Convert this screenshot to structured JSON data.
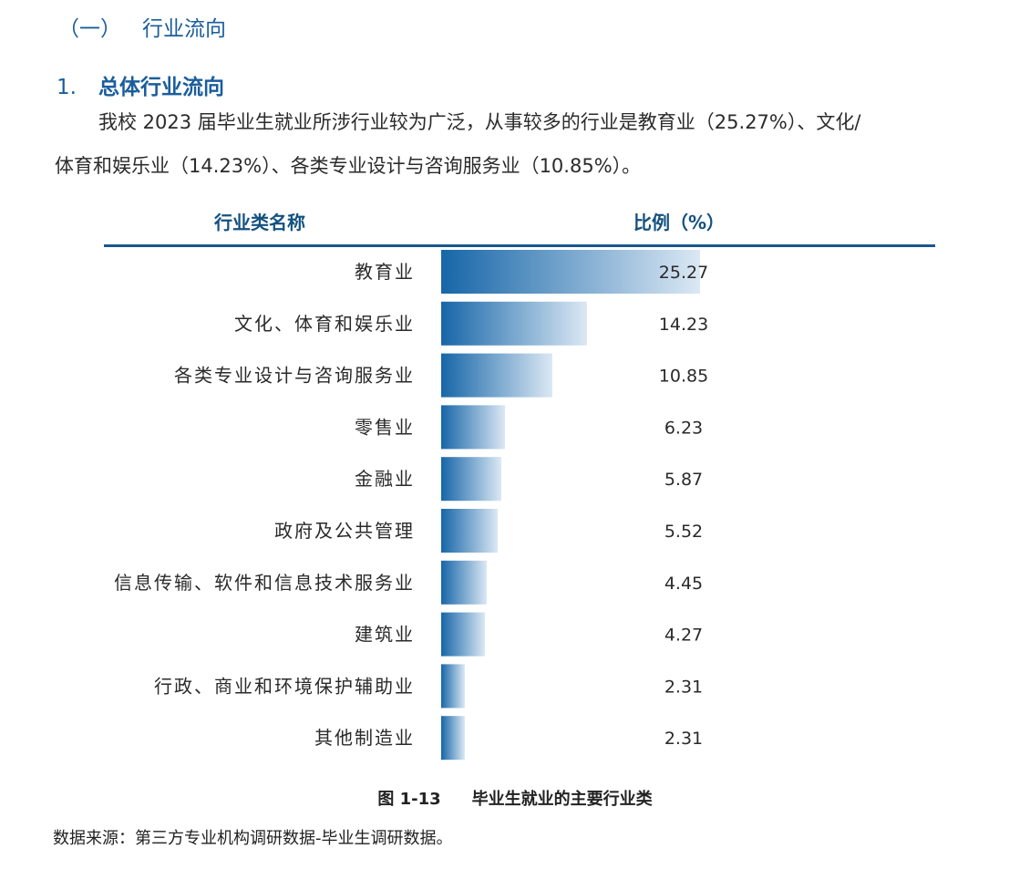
{
  "heading1": {
    "num": "（一）",
    "text": "行业流向"
  },
  "heading2": {
    "num": "1.",
    "text": "总体行业流向"
  },
  "paragraph": {
    "line1": "我校 2023 届毕业生就业所涉行业较为广泛，从事较多的行业是教育业（25.27%）、文化/",
    "line2": "体育和娱乐业（14.23%）、各类专业设计与咨询服务业（10.85%）。"
  },
  "colors": {
    "accent": "#1a5d9c",
    "bar_dark": "#1766a8",
    "bar_light": "#dbe8f4"
  },
  "chart_data": {
    "type": "bar",
    "orientation": "horizontal",
    "column_headers": {
      "name": "行业类名称",
      "ratio": "比例（%）"
    },
    "categories": [
      "教育业",
      "文化、体育和娱乐业",
      "各类专业设计与咨询服务业",
      "零售业",
      "金融业",
      "政府及公共管理",
      "信息传输、软件和信息技术服务业",
      "建筑业",
      "行政、商业和环境保护辅助业",
      "其他制造业"
    ],
    "values": [
      25.27,
      14.23,
      10.85,
      6.23,
      5.87,
      5.52,
      4.45,
      4.27,
      2.31,
      2.31
    ],
    "value_labels": [
      "25.27",
      "14.23",
      "10.85",
      "6.23",
      "5.87",
      "5.52",
      "4.45",
      "4.27",
      "2.31",
      "2.31"
    ],
    "xlim": [
      0,
      25.27
    ],
    "grid": false,
    "legend": "none"
  },
  "caption": {
    "fig": "图 1-13",
    "text": "毕业生就业的主要行业类"
  },
  "source": "数据来源：第三方专业机构调研数据-毕业生调研数据。"
}
